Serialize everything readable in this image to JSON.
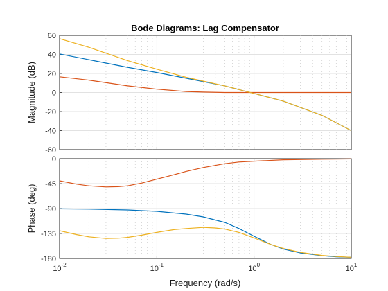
{
  "chart_data": {
    "type": "line",
    "title": "Bode Diagrams: Lag Compensator",
    "xlabel": "Frequency  (rad/s)",
    "x_scale": "log",
    "xlim": [
      0.01,
      10
    ],
    "x_ticks": [
      {
        "value": 0.01,
        "base": "10",
        "exp": "-2"
      },
      {
        "value": 0.1,
        "base": "10",
        "exp": "-1"
      },
      {
        "value": 1,
        "base": "10",
        "exp": "0"
      },
      {
        "value": 10,
        "base": "10",
        "exp": "1"
      }
    ],
    "grid": true,
    "panels": [
      {
        "id": "magnitude",
        "ylabel": "Magnitude (dB)",
        "ylim": [
          -60,
          60
        ],
        "y_ticks": [
          60,
          40,
          20,
          0,
          -20,
          -40,
          -60
        ],
        "series": [
          {
            "color": "#0072bd",
            "x": [
              0.01,
              0.02,
              0.05,
              0.1,
              0.2,
              0.5,
              0.8,
              1,
              2,
              5,
              10
            ],
            "y": [
              40.5,
              34.5,
              26.5,
              21,
              15,
              7,
              1.5,
              -1,
              -9,
              -24,
              -40
            ]
          },
          {
            "color": "#d95319",
            "x": [
              0.01,
              0.02,
              0.05,
              0.1,
              0.2,
              0.3,
              0.5,
              1,
              2,
              5,
              10
            ],
            "y": [
              16.5,
              13,
              7,
              3.5,
              1,
              0.4,
              0,
              0,
              0,
              0,
              0
            ]
          },
          {
            "color": "#edb120",
            "x": [
              0.01,
              0.02,
              0.05,
              0.1,
              0.2,
              0.5,
              0.8,
              1,
              2,
              5,
              10
            ],
            "y": [
              56.5,
              47.5,
              33.5,
              24.5,
              16,
              7,
              1.5,
              -1,
              -9,
              -24,
              -40
            ]
          }
        ]
      },
      {
        "id": "phase",
        "ylabel": "Phase (deg)",
        "ylim": [
          -180,
          0
        ],
        "y_ticks": [
          0,
          -45,
          -90,
          -135,
          -180
        ],
        "series": [
          {
            "color": "#d95319",
            "x": [
              0.01,
              0.015,
              0.02,
              0.03,
              0.04,
              0.05,
              0.07,
              0.1,
              0.15,
              0.2,
              0.3,
              0.5,
              0.7,
              1,
              2,
              5,
              10
            ],
            "y": [
              -40,
              -46,
              -49,
              -51,
              -50.5,
              -49,
              -44,
              -37,
              -29,
              -23,
              -16,
              -9,
              -6,
              -4.5,
              -2,
              -1,
              -0.5
            ]
          },
          {
            "color": "#0072bd",
            "x": [
              0.01,
              0.02,
              0.05,
              0.1,
              0.2,
              0.3,
              0.5,
              0.7,
              1,
              1.5,
              2,
              3,
              5,
              7,
              10
            ],
            "y": [
              -90.5,
              -91,
              -92.5,
              -95,
              -100,
              -105,
              -115,
              -126,
              -140,
              -155,
              -163,
              -170,
              -175,
              -177,
              -178
            ]
          },
          {
            "color": "#edb120",
            "x": [
              0.01,
              0.015,
              0.02,
              0.03,
              0.04,
              0.05,
              0.07,
              0.1,
              0.15,
              0.2,
              0.3,
              0.4,
              0.5,
              0.7,
              1,
              1.5,
              2,
              3,
              5,
              7,
              10
            ],
            "y": [
              -130,
              -137,
              -141,
              -144,
              -143.5,
              -142,
              -138,
              -133,
              -128,
              -126,
              -124,
              -125,
              -127,
              -133,
              -143,
              -155,
              -162,
              -169,
              -174.5,
              -176.5,
              -178
            ]
          }
        ]
      }
    ]
  }
}
